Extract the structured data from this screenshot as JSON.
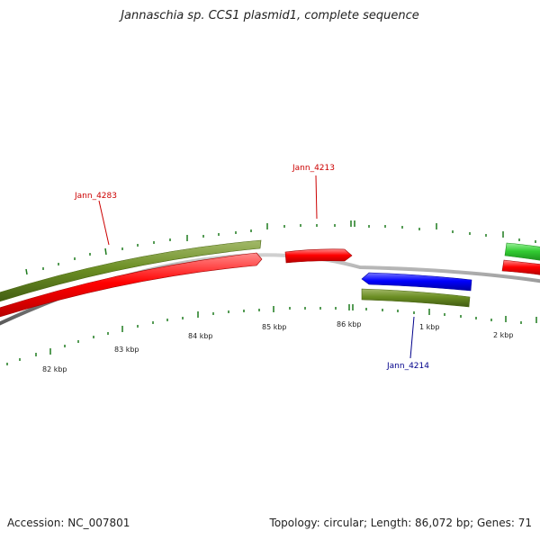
{
  "title": "Jannaschia sp. CCS1 plasmid1, complete sequence",
  "accession_text": "Accession: NC_007801",
  "summary_text": "Topology: circular; Length: 86,072 bp; Genes: 71",
  "scale": {
    "labels": [
      "82 kbp",
      "83 kbp",
      "84 kbp",
      "85 kbp",
      "86 kbp",
      "1 kbp",
      "2 kbp"
    ]
  },
  "genes": [
    {
      "name": "Jann_4283",
      "color": "#cc0000"
    },
    {
      "name": "Jann_4213",
      "color": "#cc0000"
    },
    {
      "name": "Jann_4214",
      "color": "#00008b"
    }
  ],
  "colors": {
    "forward_gene": "#ff0000",
    "reverse_gene": "#0000ff",
    "other_gene": "#6b8e23",
    "highlight_gene": "#33cc33",
    "backbone": "#888888",
    "tick": "#1e7b1e"
  }
}
